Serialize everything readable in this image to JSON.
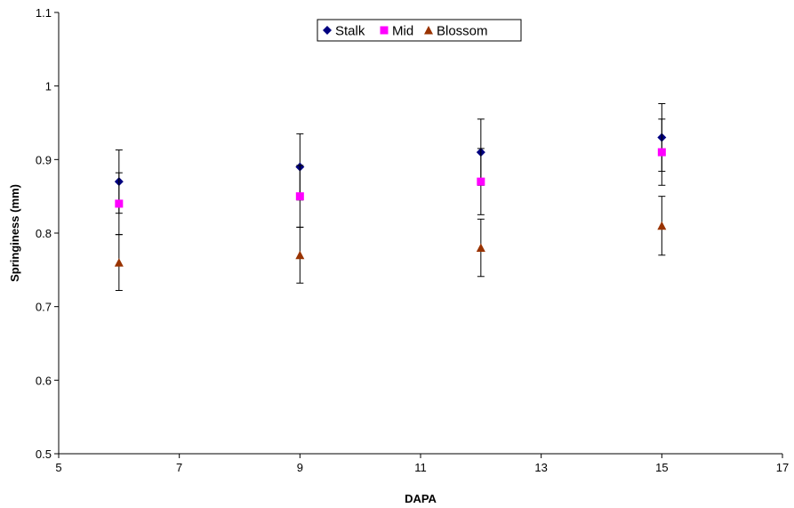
{
  "chart_data": {
    "type": "scatter",
    "title": "",
    "xlabel": "DAPA",
    "ylabel": "Springiness (mm)",
    "xlim": [
      5,
      17
    ],
    "ylim": [
      0.5,
      1.1
    ],
    "xticks": [
      "5",
      "7",
      "9",
      "11",
      "13",
      "15",
      "17"
    ],
    "yticks": [
      "0.5",
      "0.6",
      "0.7",
      "0.8",
      "0.9",
      "1",
      "1.1"
    ],
    "grid": false,
    "legend": "top-center",
    "series": [
      {
        "name": "Stalk",
        "marker": "diamond",
        "color": "#000080",
        "x": [
          6,
          9,
          12,
          15
        ],
        "y": [
          0.87,
          0.89,
          0.91,
          0.93
        ],
        "error": [
          0.043,
          0.045,
          0.045,
          0.046
        ]
      },
      {
        "name": "Mid",
        "marker": "square",
        "color": "#FF00FF",
        "x": [
          6,
          9,
          12,
          15
        ],
        "y": [
          0.84,
          0.85,
          0.87,
          0.91
        ],
        "error": [
          0.042,
          0.042,
          0.045,
          0.045
        ]
      },
      {
        "name": "Blossom",
        "marker": "triangle",
        "color": "#993300",
        "x": [
          6,
          9,
          12,
          15
        ],
        "y": [
          0.76,
          0.77,
          0.78,
          0.81
        ],
        "error": [
          0.038,
          0.038,
          0.039,
          0.04
        ]
      }
    ]
  }
}
